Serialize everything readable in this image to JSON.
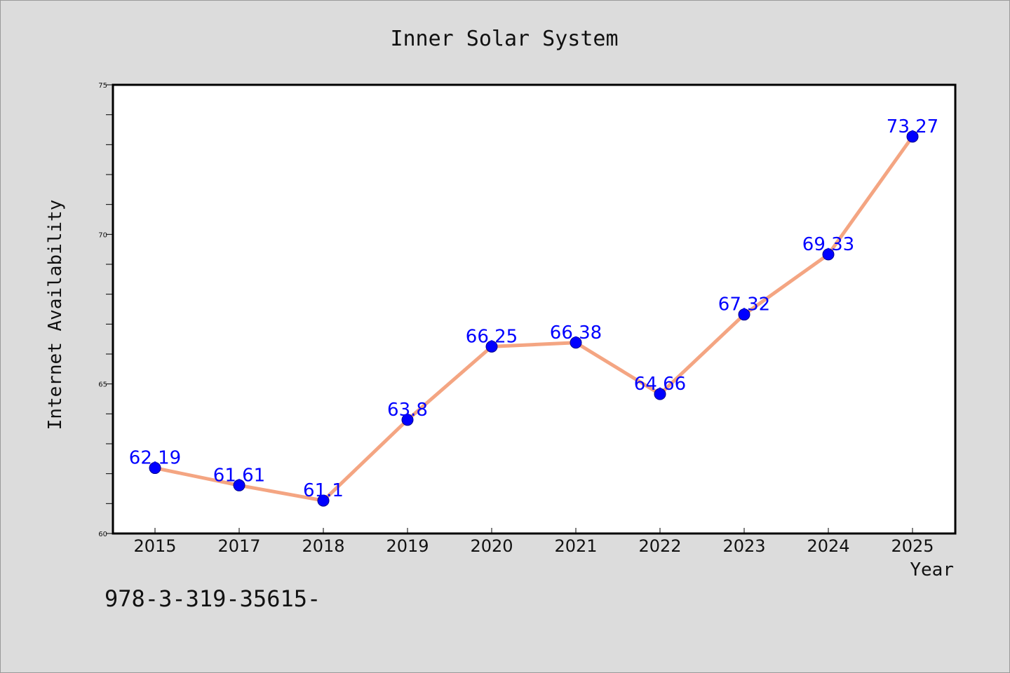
{
  "chart_data": {
    "type": "line",
    "title": "Inner Solar System",
    "xlabel": "Year",
    "ylabel": "Internet Availability",
    "categories": [
      "2015",
      "2017",
      "2018",
      "2019",
      "2020",
      "2021",
      "2022",
      "2023",
      "2024",
      "2025"
    ],
    "series": [
      {
        "values": [
          62.19,
          61.61,
          61.1,
          63.8,
          66.25,
          66.38,
          64.66,
          67.32,
          69.33,
          73.27
        ],
        "data_labels": [
          "62.19",
          "61.61",
          "61.1",
          "63.8",
          "66.25",
          "66.38",
          "64.66",
          "67.32",
          "69.33",
          "73.27"
        ],
        "line_color": "#f4a582",
        "marker_color": "#0000ff",
        "label_color": "#0000ff"
      }
    ],
    "ylim": [
      60,
      75
    ],
    "yticks": [
      60,
      65,
      70,
      75
    ],
    "ytick_labels": [
      "60",
      "65",
      "70",
      "75"
    ],
    "y_minor_step": 1,
    "grid": false,
    "legend": "none"
  },
  "footer": {
    "text": "978-3-319-35615-"
  },
  "colors": {
    "background": "#dcdcdc",
    "plot_background": "#ffffff",
    "axes_frame": "#000000"
  }
}
